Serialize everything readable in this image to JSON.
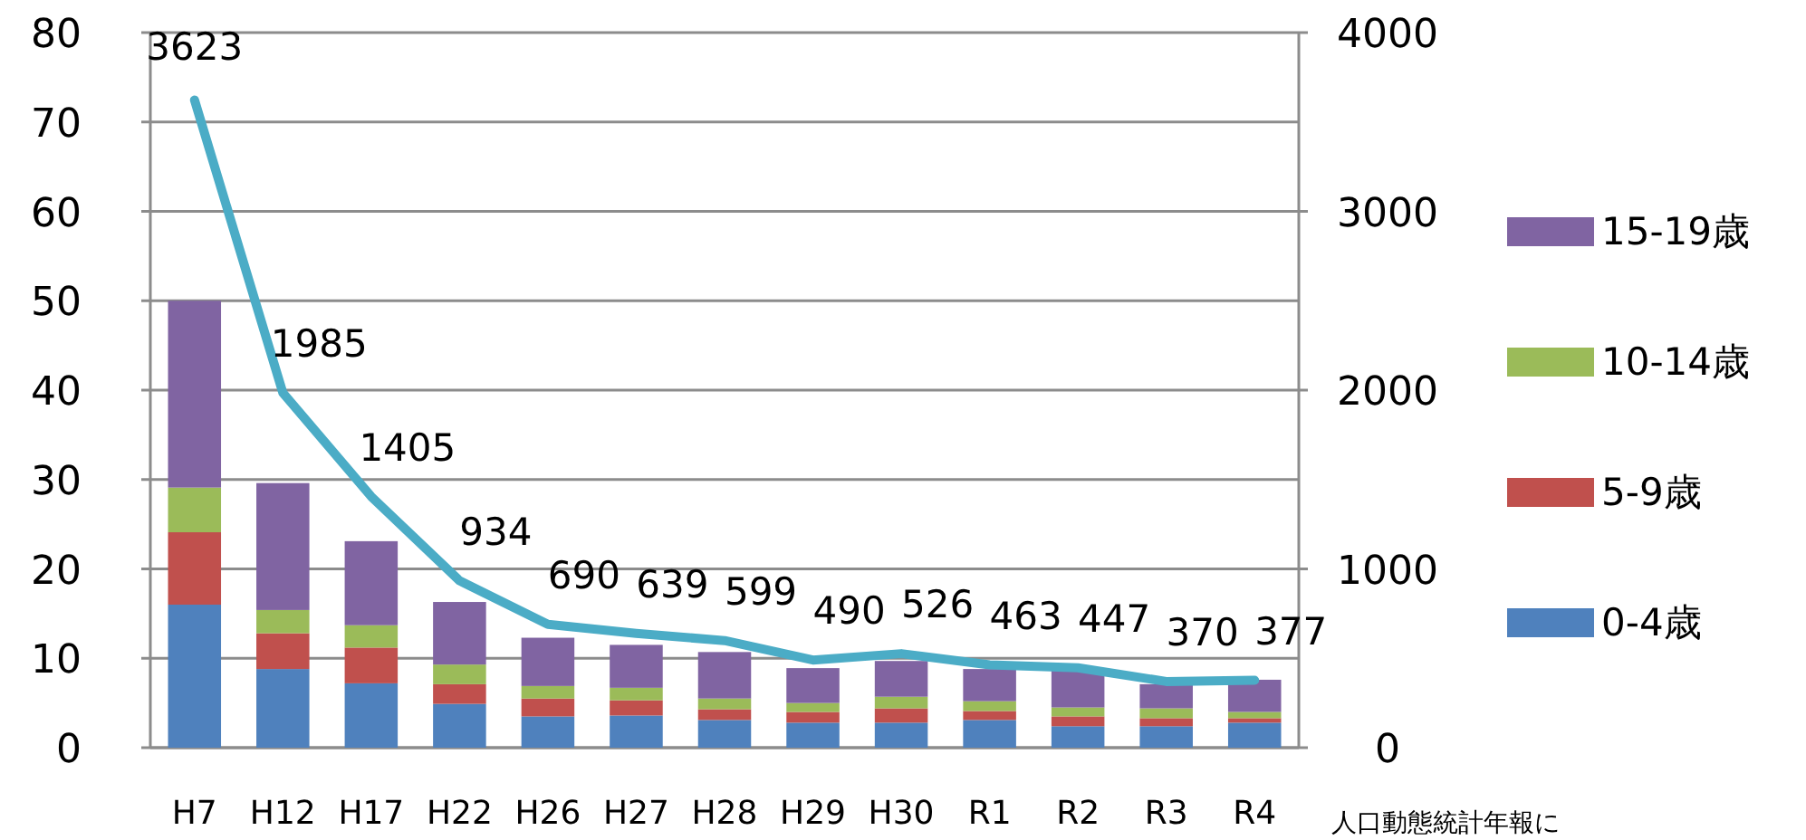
{
  "chart_data": {
    "type": "bar",
    "stacked": true,
    "categories": [
      "H7",
      "H12",
      "H17",
      "H22",
      "H26",
      "H27",
      "H28",
      "H29",
      "H30",
      "R1",
      "R2",
      "R3",
      "R4"
    ],
    "series": [
      {
        "name": "0-4歳",
        "color": "#4f81bd",
        "values": [
          16.0,
          8.8,
          7.2,
          4.9,
          3.5,
          3.6,
          3.1,
          2.8,
          2.8,
          3.1,
          2.4,
          2.4,
          2.8
        ]
      },
      {
        "name": "5-9歳",
        "color": "#c0504d",
        "values": [
          8.1,
          4.0,
          4.0,
          2.2,
          2.0,
          1.7,
          1.2,
          1.2,
          1.6,
          1.0,
          1.1,
          0.9,
          0.5
        ]
      },
      {
        "name": "10-14歳",
        "color": "#9bbb59",
        "values": [
          5.0,
          2.6,
          2.5,
          2.2,
          1.4,
          1.4,
          1.2,
          1.0,
          1.3,
          1.1,
          1.0,
          1.1,
          0.7
        ]
      },
      {
        "name": "15-19歳",
        "color": "#8064a2",
        "values": [
          20.9,
          14.2,
          9.4,
          7.0,
          5.4,
          4.8,
          5.2,
          3.9,
          4.0,
          3.6,
          4.2,
          2.7,
          3.6
        ]
      },
      {
        "type": "line",
        "axis": "y2",
        "color": "#4bacc6",
        "values": [
          3623,
          1985,
          1405,
          934,
          690,
          639,
          599,
          490,
          526,
          463,
          447,
          370,
          377
        ],
        "value_labels": [
          "3623",
          "1985",
          "1405",
          "934",
          "690",
          "639",
          "599",
          "490",
          "526",
          "463",
          "447",
          "370",
          "377"
        ]
      }
    ],
    "ylim": [
      0,
      80
    ],
    "yticks": [
      0,
      10,
      20,
      30,
      40,
      50,
      60,
      70,
      80
    ],
    "y2lim": [
      0,
      4000
    ],
    "y2ticks": [
      0,
      1000,
      2000,
      3000,
      4000
    ],
    "grid": "y",
    "legend": "right",
    "annotations": [
      "人口動態統計年報に"
    ]
  }
}
